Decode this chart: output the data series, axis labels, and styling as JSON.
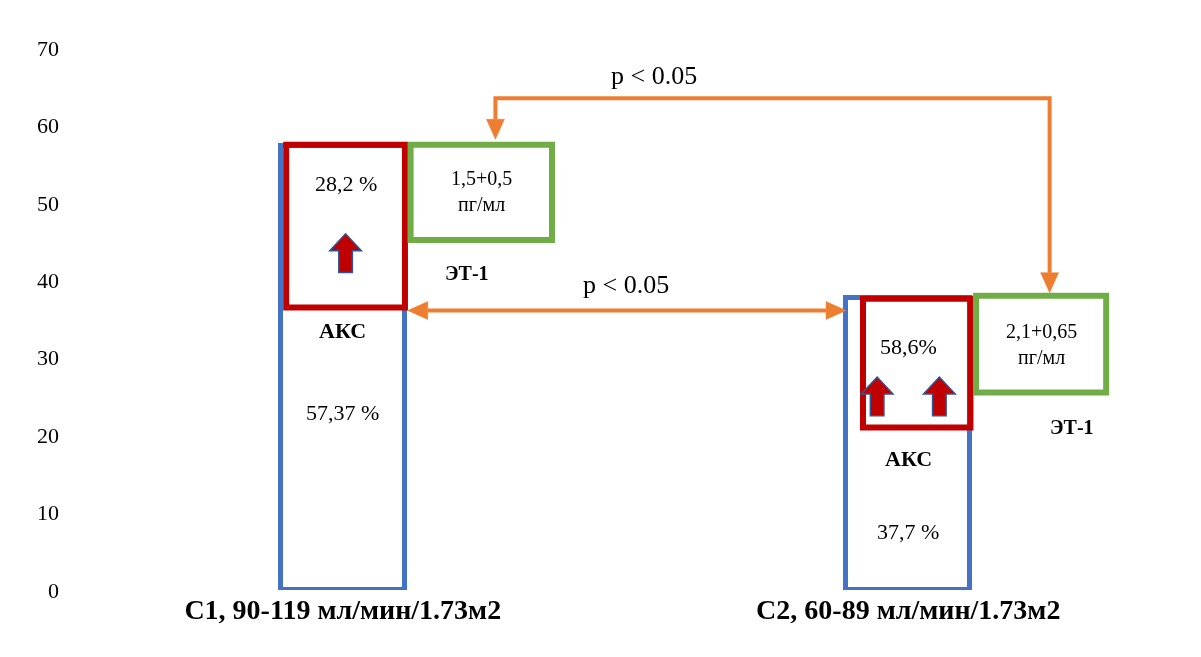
{
  "chart_data": {
    "type": "bar",
    "categories": [
      "С1, 90-119 мл/мин/1.73м2",
      "С2, 60-89 мл/мин/1.73м2"
    ],
    "values": [
      57.37,
      37.7
    ],
    "value_labels": [
      "57,37 %",
      "37,7 %"
    ],
    "color": "#4472c4",
    "ylim": [
      0,
      70
    ],
    "yticks": [
      0,
      10,
      20,
      30,
      40,
      50,
      60,
      70
    ],
    "annotations": [
      "28,2 %",
      "АКС",
      "1,5+0,5\nпг/мл",
      "ЭТ-1",
      "58,6%",
      "АКС",
      "2,1+0,65\nпг/мл",
      "ЭТ-1",
      "p < 0.05",
      "p < 0.05"
    ]
  }
}
